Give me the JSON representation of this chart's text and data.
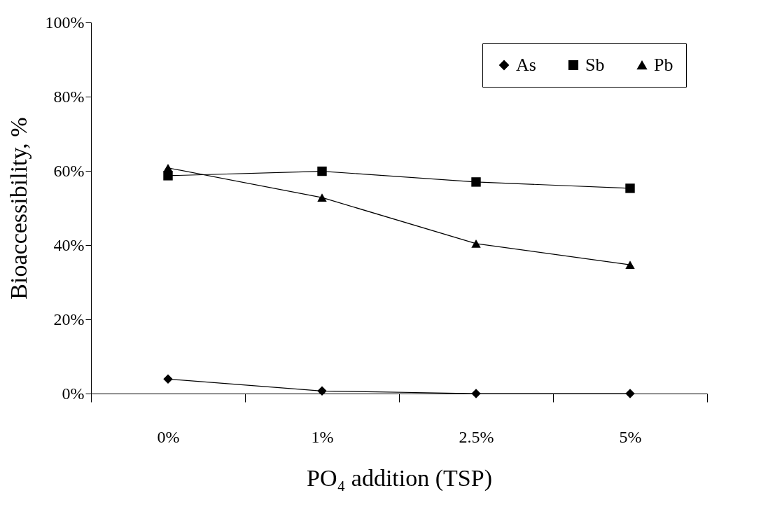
{
  "chart_data": {
    "type": "line",
    "xlabel": "PO₄ addition (TSP)",
    "ylabel": "Bioaccessibility, %",
    "categories": [
      "0%",
      "1%",
      "2.5%",
      "5%"
    ],
    "series": [
      {
        "name": "As",
        "color": "#000000",
        "marker": "diamond",
        "values": [
          3.9,
          0.7,
          0,
          0
        ]
      },
      {
        "name": "Sb",
        "color": "#000000",
        "marker": "square",
        "values": [
          58.7,
          59.9,
          57.0,
          55.3
        ]
      },
      {
        "name": "Pb",
        "color": "#000000",
        "marker": "triangle",
        "values": [
          60.8,
          52.8,
          40.4,
          34.7
        ]
      }
    ],
    "ylim": [
      0,
      100
    ],
    "yticks": [
      {
        "value": 0,
        "label": "0%"
      },
      {
        "value": 20,
        "label": "20%"
      },
      {
        "value": 40,
        "label": "40%"
      },
      {
        "value": 60,
        "label": "60%"
      },
      {
        "value": 80,
        "label": "80%"
      },
      {
        "value": 100,
        "label": "100%"
      }
    ],
    "grid": false,
    "legend": "top right",
    "line_style": "solid"
  }
}
